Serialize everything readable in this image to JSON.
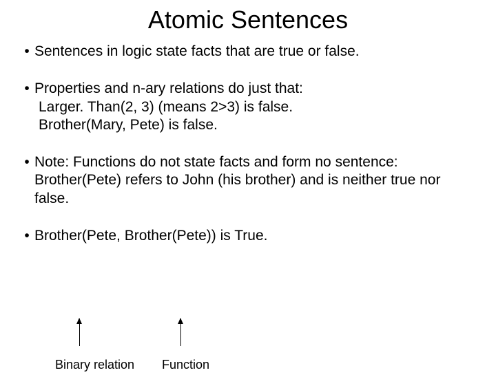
{
  "title": "Atomic Sentences",
  "bullets": {
    "b1": "Sentences in logic state facts that are true or false.",
    "b2": "Properties and n-ary relations do just that:",
    "b2_sub1": "Larger. Than(2, 3) (means 2>3) is false.",
    "b2_sub2": "Brother(Mary, Pete) is false.",
    "b3": "Note: Functions do not state facts and form no sentence: Brother(Pete) refers to John (his brother) and is neither true nor false.",
    "b4": "Brother(Pete, Brother(Pete)) is True."
  },
  "labels": {
    "binary": "Binary relation",
    "func": "Function"
  },
  "style": {
    "title_fontsize": 36,
    "body_fontsize": 21,
    "label_fontsize": 18,
    "text_color": "#000000",
    "background_color": "#ffffff",
    "arrow_color": "#000000"
  }
}
